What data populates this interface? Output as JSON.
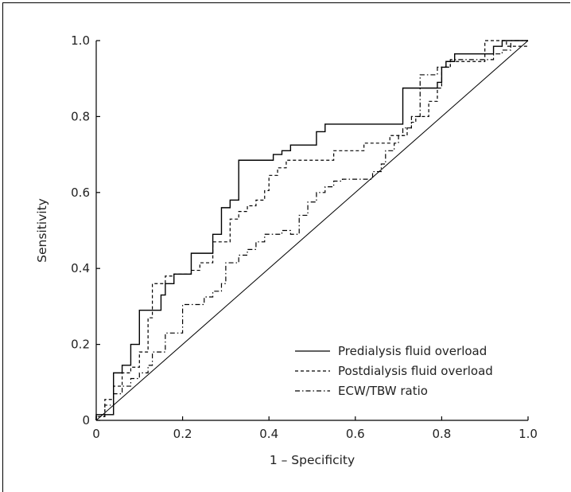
{
  "chart_data": {
    "type": "line",
    "title": "",
    "xlabel": "1 – Specificity",
    "ylabel": "Sensitivity",
    "xlim": [
      0,
      1.0
    ],
    "ylim": [
      0,
      1.0
    ],
    "x_ticks": [
      0,
      0.2,
      0.4,
      0.6,
      0.8,
      1.0
    ],
    "x_tick_labels": [
      "0",
      "0.2",
      "0.4",
      "0.6",
      "0.8",
      "1.0"
    ],
    "y_ticks": [
      0,
      0.2,
      0.4,
      0.6,
      0.8,
      1.0
    ],
    "y_tick_labels": [
      "0",
      "0.2",
      "0.4",
      "0.6",
      "0.8",
      "1.0"
    ],
    "grid": false,
    "legend_position": "bottom-right",
    "reference_line": {
      "x": [
        0,
        1
      ],
      "y": [
        0,
        1
      ]
    },
    "series": [
      {
        "name": "Predialysis fluid overload",
        "style": "solid",
        "points": [
          [
            0,
            0
          ],
          [
            0,
            0.015
          ],
          [
            0.04,
            0.015
          ],
          [
            0.04,
            0.125
          ],
          [
            0.06,
            0.125
          ],
          [
            0.06,
            0.145
          ],
          [
            0.08,
            0.145
          ],
          [
            0.08,
            0.2
          ],
          [
            0.1,
            0.2
          ],
          [
            0.1,
            0.29
          ],
          [
            0.15,
            0.29
          ],
          [
            0.15,
            0.33
          ],
          [
            0.16,
            0.33
          ],
          [
            0.16,
            0.36
          ],
          [
            0.18,
            0.36
          ],
          [
            0.18,
            0.385
          ],
          [
            0.22,
            0.385
          ],
          [
            0.22,
            0.44
          ],
          [
            0.27,
            0.44
          ],
          [
            0.27,
            0.49
          ],
          [
            0.29,
            0.49
          ],
          [
            0.29,
            0.56
          ],
          [
            0.31,
            0.56
          ],
          [
            0.31,
            0.58
          ],
          [
            0.33,
            0.58
          ],
          [
            0.33,
            0.685
          ],
          [
            0.41,
            0.685
          ],
          [
            0.41,
            0.7
          ],
          [
            0.43,
            0.7
          ],
          [
            0.43,
            0.71
          ],
          [
            0.45,
            0.71
          ],
          [
            0.45,
            0.725
          ],
          [
            0.51,
            0.725
          ],
          [
            0.51,
            0.76
          ],
          [
            0.53,
            0.76
          ],
          [
            0.53,
            0.78
          ],
          [
            0.71,
            0.78
          ],
          [
            0.71,
            0.875
          ],
          [
            0.79,
            0.875
          ],
          [
            0.79,
            0.89
          ],
          [
            0.8,
            0.89
          ],
          [
            0.8,
            0.93
          ],
          [
            0.81,
            0.93
          ],
          [
            0.81,
            0.945
          ],
          [
            0.83,
            0.945
          ],
          [
            0.83,
            0.965
          ],
          [
            0.92,
            0.965
          ],
          [
            0.92,
            0.985
          ],
          [
            0.94,
            0.985
          ],
          [
            0.94,
            1.0
          ],
          [
            1.0,
            1.0
          ]
        ]
      },
      {
        "name": "Postdialysis fluid overload",
        "style": "dashed",
        "points": [
          [
            0,
            0
          ],
          [
            0,
            0.01
          ],
          [
            0.02,
            0.01
          ],
          [
            0.02,
            0.055
          ],
          [
            0.04,
            0.055
          ],
          [
            0.04,
            0.09
          ],
          [
            0.06,
            0.09
          ],
          [
            0.06,
            0.125
          ],
          [
            0.08,
            0.125
          ],
          [
            0.08,
            0.14
          ],
          [
            0.1,
            0.14
          ],
          [
            0.1,
            0.18
          ],
          [
            0.12,
            0.18
          ],
          [
            0.12,
            0.27
          ],
          [
            0.13,
            0.27
          ],
          [
            0.13,
            0.36
          ],
          [
            0.16,
            0.36
          ],
          [
            0.16,
            0.38
          ],
          [
            0.18,
            0.38
          ],
          [
            0.18,
            0.385
          ],
          [
            0.22,
            0.385
          ],
          [
            0.22,
            0.395
          ],
          [
            0.24,
            0.395
          ],
          [
            0.24,
            0.415
          ],
          [
            0.27,
            0.415
          ],
          [
            0.27,
            0.47
          ],
          [
            0.31,
            0.47
          ],
          [
            0.31,
            0.53
          ],
          [
            0.33,
            0.53
          ],
          [
            0.33,
            0.55
          ],
          [
            0.35,
            0.55
          ],
          [
            0.35,
            0.565
          ],
          [
            0.37,
            0.565
          ],
          [
            0.37,
            0.58
          ],
          [
            0.39,
            0.58
          ],
          [
            0.39,
            0.605
          ],
          [
            0.4,
            0.605
          ],
          [
            0.4,
            0.645
          ],
          [
            0.42,
            0.645
          ],
          [
            0.42,
            0.665
          ],
          [
            0.44,
            0.665
          ],
          [
            0.44,
            0.685
          ],
          [
            0.55,
            0.685
          ],
          [
            0.55,
            0.71
          ],
          [
            0.62,
            0.71
          ],
          [
            0.62,
            0.73
          ],
          [
            0.68,
            0.73
          ],
          [
            0.68,
            0.75
          ],
          [
            0.72,
            0.75
          ],
          [
            0.72,
            0.77
          ],
          [
            0.73,
            0.77
          ],
          [
            0.73,
            0.785
          ],
          [
            0.74,
            0.785
          ],
          [
            0.74,
            0.8
          ],
          [
            0.77,
            0.8
          ],
          [
            0.77,
            0.84
          ],
          [
            0.79,
            0.84
          ],
          [
            0.79,
            0.875
          ],
          [
            0.8,
            0.875
          ],
          [
            0.8,
            0.93
          ],
          [
            0.82,
            0.93
          ],
          [
            0.82,
            0.945
          ],
          [
            0.9,
            0.945
          ],
          [
            0.9,
            1.0
          ],
          [
            0.95,
            1.0
          ],
          [
            0.95,
            0.985
          ],
          [
            1.0,
            0.985
          ]
        ]
      },
      {
        "name": "ECW/TBW ratio",
        "style": "dashdot",
        "points": [
          [
            0,
            0
          ],
          [
            0,
            0.01
          ],
          [
            0.02,
            0.01
          ],
          [
            0.02,
            0.04
          ],
          [
            0.04,
            0.04
          ],
          [
            0.04,
            0.07
          ],
          [
            0.06,
            0.07
          ],
          [
            0.06,
            0.09
          ],
          [
            0.08,
            0.09
          ],
          [
            0.08,
            0.11
          ],
          [
            0.1,
            0.11
          ],
          [
            0.1,
            0.125
          ],
          [
            0.12,
            0.125
          ],
          [
            0.12,
            0.145
          ],
          [
            0.13,
            0.145
          ],
          [
            0.13,
            0.18
          ],
          [
            0.16,
            0.18
          ],
          [
            0.16,
            0.23
          ],
          [
            0.2,
            0.23
          ],
          [
            0.2,
            0.305
          ],
          [
            0.25,
            0.305
          ],
          [
            0.25,
            0.325
          ],
          [
            0.27,
            0.325
          ],
          [
            0.27,
            0.34
          ],
          [
            0.29,
            0.34
          ],
          [
            0.29,
            0.36
          ],
          [
            0.3,
            0.36
          ],
          [
            0.3,
            0.415
          ],
          [
            0.33,
            0.415
          ],
          [
            0.33,
            0.435
          ],
          [
            0.35,
            0.435
          ],
          [
            0.35,
            0.45
          ],
          [
            0.37,
            0.45
          ],
          [
            0.37,
            0.47
          ],
          [
            0.39,
            0.47
          ],
          [
            0.39,
            0.49
          ],
          [
            0.43,
            0.49
          ],
          [
            0.43,
            0.5
          ],
          [
            0.45,
            0.5
          ],
          [
            0.45,
            0.49
          ],
          [
            0.47,
            0.49
          ],
          [
            0.47,
            0.54
          ],
          [
            0.49,
            0.54
          ],
          [
            0.49,
            0.575
          ],
          [
            0.51,
            0.575
          ],
          [
            0.51,
            0.6
          ],
          [
            0.53,
            0.6
          ],
          [
            0.53,
            0.615
          ],
          [
            0.55,
            0.615
          ],
          [
            0.55,
            0.63
          ],
          [
            0.57,
            0.63
          ],
          [
            0.57,
            0.635
          ],
          [
            0.64,
            0.635
          ],
          [
            0.64,
            0.655
          ],
          [
            0.66,
            0.655
          ],
          [
            0.66,
            0.675
          ],
          [
            0.67,
            0.675
          ],
          [
            0.67,
            0.71
          ],
          [
            0.69,
            0.71
          ],
          [
            0.69,
            0.73
          ],
          [
            0.7,
            0.73
          ],
          [
            0.7,
            0.75
          ],
          [
            0.71,
            0.75
          ],
          [
            0.71,
            0.77
          ],
          [
            0.73,
            0.77
          ],
          [
            0.73,
            0.8
          ],
          [
            0.75,
            0.8
          ],
          [
            0.75,
            0.91
          ],
          [
            0.79,
            0.91
          ],
          [
            0.79,
            0.93
          ],
          [
            0.82,
            0.93
          ],
          [
            0.82,
            0.95
          ],
          [
            0.92,
            0.95
          ],
          [
            0.92,
            0.965
          ],
          [
            0.94,
            0.965
          ],
          [
            0.94,
            0.975
          ],
          [
            0.96,
            0.975
          ],
          [
            0.96,
            1.0
          ],
          [
            1.0,
            1.0
          ]
        ]
      }
    ]
  },
  "legend": {
    "predialysis": "Predialysis fluid overload",
    "postdialysis": "Postdialysis fluid overload",
    "ecw_tbw": "ECW/TBW ratio"
  }
}
